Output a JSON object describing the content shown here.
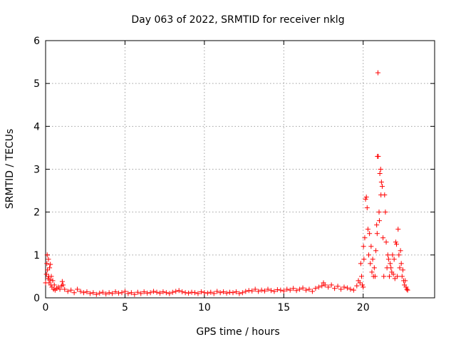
{
  "chart_data": {
    "type": "scatter",
    "title": "Day 063 of 2022, SRMTID for receiver nklg",
    "xlabel": "GPS time / hours",
    "ylabel": "SRMTID / TECUs",
    "xlim": [
      0,
      24.5
    ],
    "ylim": [
      0,
      6
    ],
    "xticks": [
      0,
      5,
      10,
      15,
      20
    ],
    "yticks": [
      0,
      1,
      2,
      3,
      4,
      5,
      6
    ],
    "grid": true,
    "marker": "+",
    "marker_color": "#ff0000",
    "series": [
      {
        "name": "nklg",
        "x": [
          0.0,
          0.05,
          0.08,
          0.1,
          0.12,
          0.15,
          0.18,
          0.2,
          0.22,
          0.25,
          0.28,
          0.3,
          0.33,
          0.36,
          0.4,
          0.45,
          0.5,
          0.55,
          0.6,
          0.7,
          0.8,
          0.9,
          1.0,
          1.05,
          1.1,
          1.2,
          1.4,
          1.6,
          1.8,
          2.0,
          2.2,
          2.4,
          2.6,
          2.8,
          3.0,
          3.2,
          3.4,
          3.6,
          3.8,
          4.0,
          4.2,
          4.4,
          4.6,
          4.8,
          5.0,
          5.2,
          5.4,
          5.6,
          5.8,
          6.0,
          6.2,
          6.4,
          6.6,
          6.8,
          7.0,
          7.2,
          7.4,
          7.6,
          7.8,
          8.0,
          8.2,
          8.4,
          8.6,
          8.8,
          9.0,
          9.2,
          9.4,
          9.6,
          9.8,
          10.0,
          10.2,
          10.4,
          10.6,
          10.8,
          11.0,
          11.2,
          11.4,
          11.6,
          11.8,
          12.0,
          12.2,
          12.4,
          12.6,
          12.8,
          13.0,
          13.2,
          13.4,
          13.6,
          13.8,
          14.0,
          14.2,
          14.4,
          14.6,
          14.8,
          15.0,
          15.2,
          15.4,
          15.6,
          15.8,
          16.0,
          16.2,
          16.4,
          16.6,
          16.8,
          17.0,
          17.2,
          17.4,
          17.5,
          17.6,
          17.8,
          18.0,
          18.2,
          18.4,
          18.6,
          18.8,
          19.0,
          19.2,
          19.4,
          19.6,
          19.7,
          19.8,
          19.85,
          19.9,
          19.95,
          20.0,
          20.02,
          20.05,
          20.1,
          20.15,
          20.2,
          20.25,
          20.3,
          20.35,
          20.4,
          20.45,
          20.5,
          20.55,
          20.6,
          20.65,
          20.7,
          20.75,
          20.8,
          20.85,
          20.88,
          20.9,
          20.93,
          20.95,
          21.0,
          21.02,
          21.05,
          21.1,
          21.12,
          21.15,
          21.2,
          21.25,
          21.3,
          21.35,
          21.4,
          21.45,
          21.5,
          21.55,
          21.6,
          21.65,
          21.7,
          21.75,
          21.8,
          21.85,
          21.9,
          21.95,
          22.0,
          22.05,
          22.1,
          22.15,
          22.2,
          22.25,
          22.3,
          22.35,
          22.4,
          22.45,
          22.5,
          22.55,
          22.6,
          22.65,
          22.7,
          22.75,
          22.8
        ],
        "y": [
          0.35,
          0.55,
          0.8,
          1.0,
          0.65,
          0.45,
          0.9,
          0.5,
          0.35,
          0.7,
          0.42,
          0.78,
          0.3,
          0.5,
          0.25,
          0.4,
          0.2,
          0.3,
          0.18,
          0.22,
          0.25,
          0.2,
          0.28,
          0.38,
          0.3,
          0.2,
          0.15,
          0.18,
          0.12,
          0.2,
          0.15,
          0.12,
          0.14,
          0.1,
          0.12,
          0.08,
          0.11,
          0.13,
          0.09,
          0.12,
          0.1,
          0.14,
          0.11,
          0.12,
          0.15,
          0.1,
          0.12,
          0.08,
          0.13,
          0.1,
          0.14,
          0.11,
          0.12,
          0.15,
          0.13,
          0.11,
          0.14,
          0.12,
          0.1,
          0.13,
          0.15,
          0.17,
          0.14,
          0.12,
          0.11,
          0.13,
          0.12,
          0.1,
          0.14,
          0.12,
          0.11,
          0.13,
          0.1,
          0.15,
          0.12,
          0.14,
          0.11,
          0.13,
          0.12,
          0.14,
          0.1,
          0.12,
          0.15,
          0.17,
          0.16,
          0.2,
          0.15,
          0.18,
          0.16,
          0.2,
          0.17,
          0.15,
          0.19,
          0.18,
          0.16,
          0.2,
          0.18,
          0.22,
          0.17,
          0.2,
          0.23,
          0.18,
          0.2,
          0.15,
          0.22,
          0.25,
          0.28,
          0.35,
          0.3,
          0.25,
          0.3,
          0.22,
          0.27,
          0.2,
          0.25,
          0.23,
          0.2,
          0.18,
          0.28,
          0.4,
          0.35,
          0.8,
          0.5,
          0.3,
          0.25,
          1.2,
          0.9,
          1.4,
          2.3,
          2.35,
          2.1,
          1.6,
          1.0,
          1.5,
          0.8,
          1.2,
          0.6,
          0.9,
          0.5,
          0.7,
          0.5,
          1.1,
          1.7,
          1.5,
          3.3,
          5.25,
          3.3,
          2.0,
          1.8,
          2.9,
          3.0,
          2.4,
          2.7,
          2.6,
          1.4,
          0.5,
          2.4,
          2.0,
          1.3,
          0.7,
          1.0,
          0.9,
          0.5,
          0.8,
          0.7,
          0.6,
          1.0,
          0.55,
          0.9,
          0.45,
          1.3,
          1.25,
          0.5,
          1.6,
          1.0,
          0.7,
          1.1,
          0.8,
          0.5,
          0.65,
          0.4,
          0.3,
          0.4,
          0.25,
          0.2,
          0.18
        ]
      }
    ]
  }
}
